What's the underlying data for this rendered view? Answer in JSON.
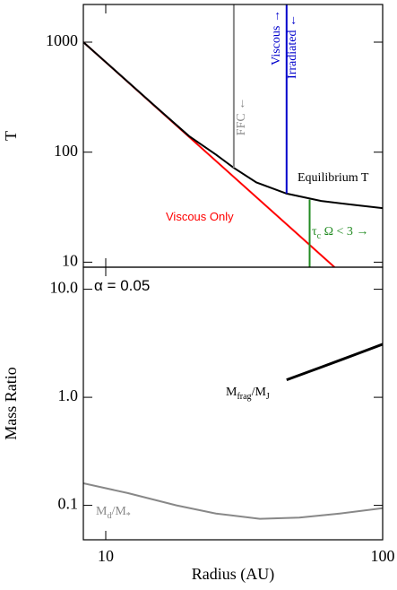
{
  "chart_data": [
    {
      "type": "line",
      "ylabel": "T",
      "log": true,
      "xlim": [
        8.3,
        100
      ],
      "xticks": [
        10,
        100
      ],
      "ylim": [
        9,
        2200
      ],
      "yticks": [
        10,
        100,
        1000
      ],
      "series": [
        {
          "color": "#ff0000",
          "x": [
            8.3,
            67
          ],
          "values": [
            1000,
            9
          ]
        },
        {
          "color": "#000000",
          "x": [
            8.3,
            10,
            15,
            20,
            25,
            29,
            35,
            45,
            60,
            80,
            100
          ],
          "values": [
            1000,
            660,
            265,
            140,
            95,
            72,
            53,
            42,
            36,
            33,
            31
          ]
        },
        {
          "color": "#888888",
          "x": [
            29,
            29
          ],
          "values": [
            72,
            2200
          ]
        },
        {
          "color": "#0000cc",
          "x": [
            45,
            45
          ],
          "values": [
            42,
            2200
          ]
        },
        {
          "color": "#228b22",
          "x": [
            54.5,
            54.5
          ],
          "values": [
            37,
            9
          ]
        }
      ],
      "annotations": [
        {
          "parts": [
            "FFC ←"
          ],
          "color": "#888888"
        },
        {
          "parts": [
            "Viscous →"
          ],
          "color": "#0000cc"
        },
        {
          "parts": [
            "Irradiated ←"
          ],
          "color": "#0000cc"
        },
        {
          "parts": [
            "Equilibrium T"
          ],
          "color": "#000000"
        },
        {
          "parts": [
            "Viscous Only"
          ],
          "color": "#ff0000"
        },
        {
          "parts": [
            "τ",
            "c",
            " Ω < 3 →"
          ],
          "color": "#228b22"
        }
      ]
    },
    {
      "type": "line",
      "ylabel": "Mass Ratio",
      "xlabel": "Radius (AU)",
      "log": true,
      "xlim": [
        8.3,
        100
      ],
      "xticks": [
        10,
        100
      ],
      "ylim": [
        0.048,
        16
      ],
      "yticks": [
        0.1,
        {
          "value": 1,
          "label": "1.0"
        },
        {
          "value": 10,
          "label": "10.0"
        }
      ],
      "series": [
        {
          "color": "#000000",
          "width": 3,
          "x": [
            45,
            60,
            80,
            100
          ],
          "values": [
            1.45,
            1.9,
            2.5,
            3.1
          ]
        },
        {
          "color": "#888888",
          "width": 2,
          "x": [
            8.3,
            12,
            18,
            25,
            36,
            50,
            70,
            100
          ],
          "values": [
            0.16,
            0.13,
            0.1,
            0.084,
            0.075,
            0.077,
            0.084,
            0.094
          ]
        }
      ],
      "annotations": [
        {
          "parts": [
            "α = 0.05"
          ],
          "color": "#000000"
        },
        {
          "parts": [
            "M",
            "frag",
            "/M",
            "J"
          ],
          "color": "#000000"
        },
        {
          "parts": [
            "M",
            "d",
            "/M",
            "*"
          ],
          "color": "#888888"
        }
      ]
    }
  ]
}
